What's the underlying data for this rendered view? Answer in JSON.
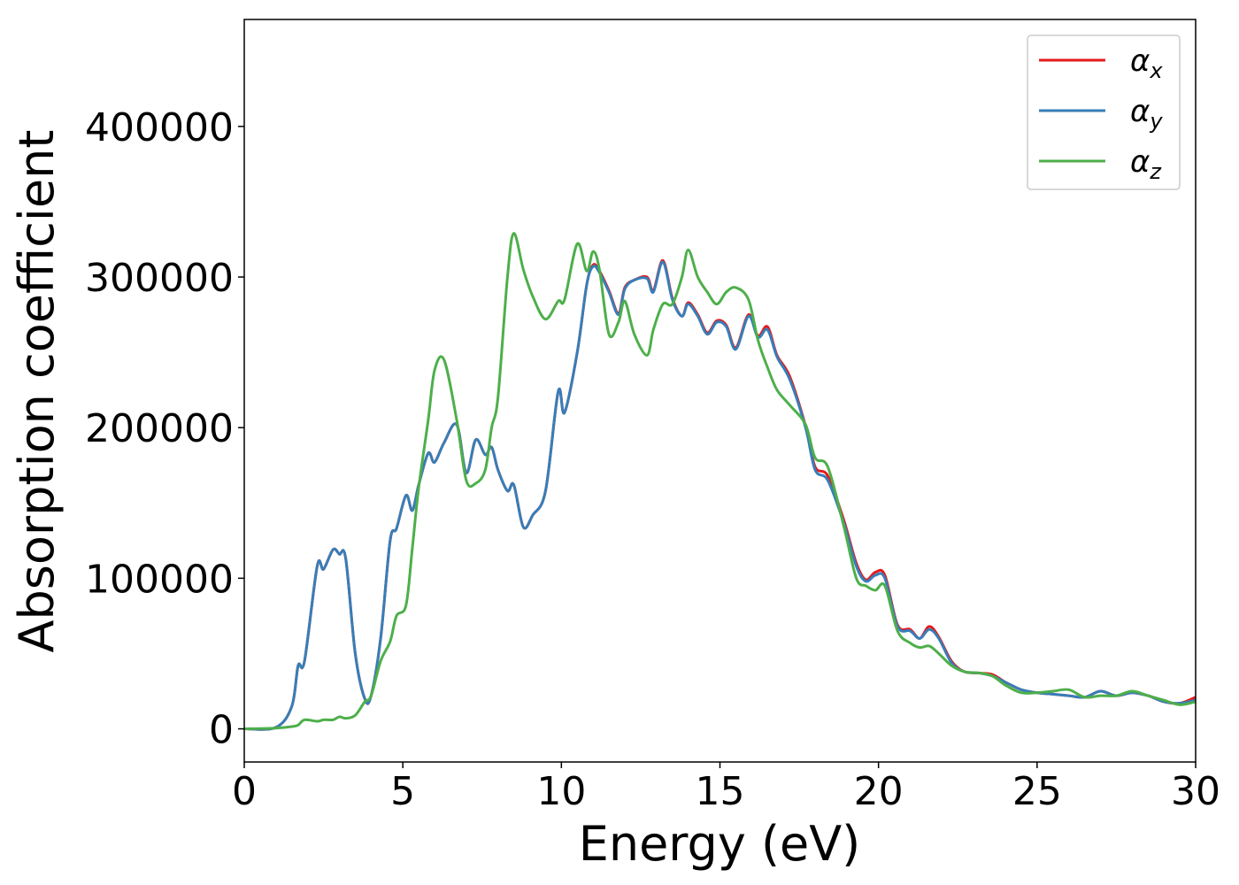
{
  "chart_data": {
    "type": "line",
    "xlabel": "Energy (eV)",
    "ylabel": "Absorption coefficient",
    "xlim": [
      0,
      30
    ],
    "ylim": [
      -22000,
      471000
    ],
    "xticks": [
      0,
      5,
      10,
      15,
      20,
      25,
      30
    ],
    "yticks": [
      0,
      100000,
      200000,
      300000,
      400000
    ],
    "grid": false,
    "legend": "upper right",
    "x": [
      0,
      1,
      1.5,
      1.7,
      1.9,
      2.3,
      2.5,
      2.8,
      3.0,
      3.2,
      3.5,
      3.8,
      4.0,
      4.3,
      4.6,
      4.8,
      5.1,
      5.3,
      5.5,
      5.8,
      6.0,
      6.3,
      6.7,
      7.0,
      7.3,
      7.6,
      7.8,
      8.0,
      8.3,
      8.5,
      8.8,
      9.1,
      9.5,
      9.9,
      10.1,
      10.5,
      10.8,
      11.0,
      11.2,
      11.5,
      11.8,
      12.0,
      12.3,
      12.7,
      12.9,
      13.2,
      13.5,
      13.8,
      14.0,
      14.3,
      14.6,
      14.9,
      15.2,
      15.5,
      15.9,
      16.2,
      16.5,
      16.8,
      17.2,
      17.7,
      18.0,
      18.4,
      18.9,
      19.3,
      19.6,
      19.9,
      20.2,
      20.6,
      21.0,
      21.3,
      21.6,
      21.9,
      22.3,
      22.7,
      23.2,
      23.6,
      24.0,
      24.5,
      25.0,
      25.5,
      26.0,
      26.5,
      27.0,
      27.5,
      28.0,
      28.5,
      29.0,
      29.5,
      30.0
    ],
    "series": [
      {
        "name": "αx",
        "color": "#e41a1c",
        "values": [
          0,
          1000,
          15000,
          42000,
          45000,
          108000,
          106000,
          119000,
          116000,
          113000,
          50000,
          20000,
          22000,
          60000,
          125000,
          133000,
          155000,
          145000,
          162000,
          183000,
          177000,
          190000,
          202000,
          170000,
          192000,
          182000,
          187000,
          172000,
          158000,
          162000,
          134000,
          142000,
          158000,
          224000,
          210000,
          250000,
          295000,
          308000,
          304000,
          291000,
          276000,
          293000,
          298000,
          300000,
          291000,
          311000,
          286000,
          274000,
          283000,
          275000,
          263000,
          271000,
          268000,
          253000,
          275000,
          261000,
          267000,
          248000,
          234000,
          201000,
          174000,
          168000,
          139000,
          110000,
          99000,
          104000,
          102000,
          69000,
          66000,
          60000,
          68000,
          61000,
          45000,
          38000,
          37000,
          36000,
          31000,
          26000,
          24000,
          23000,
          22000,
          21000,
          25000,
          22000,
          24000,
          22000,
          18000,
          17000,
          21000
        ]
      },
      {
        "name": "αy",
        "color": "#377eb8",
        "values": [
          0,
          1000,
          15000,
          42000,
          45000,
          108000,
          106000,
          119000,
          116000,
          113000,
          50000,
          20000,
          22000,
          60000,
          125000,
          133000,
          155000,
          145000,
          162000,
          183000,
          177000,
          190000,
          202000,
          170000,
          192000,
          182000,
          187000,
          172000,
          158000,
          162000,
          134000,
          142000,
          158000,
          224000,
          210000,
          250000,
          295000,
          307000,
          303000,
          290000,
          275000,
          292000,
          298000,
          299000,
          290000,
          310000,
          285000,
          274000,
          282000,
          274000,
          262000,
          270000,
          267000,
          252000,
          274000,
          260000,
          265000,
          247000,
          232000,
          200000,
          172000,
          165000,
          137000,
          108000,
          98000,
          102000,
          100000,
          68000,
          65000,
          60000,
          66000,
          60000,
          44000,
          38000,
          37000,
          35000,
          31000,
          26000,
          24000,
          23000,
          22000,
          21000,
          25000,
          22000,
          24000,
          22000,
          18000,
          17000,
          19000
        ]
      },
      {
        "name": "αz",
        "color": "#4daf4a",
        "values": [
          0,
          500,
          1500,
          2500,
          6000,
          5000,
          6000,
          6000,
          8000,
          7000,
          9000,
          18000,
          22000,
          45000,
          58000,
          75000,
          82000,
          120000,
          160000,
          205000,
          238000,
          245000,
          205000,
          165000,
          163000,
          172000,
          200000,
          220000,
          300000,
          329000,
          305000,
          287000,
          272000,
          284000,
          285000,
          322000,
          304000,
          317000,
          305000,
          262000,
          270000,
          284000,
          262000,
          248000,
          265000,
          282000,
          282000,
          300000,
          318000,
          300000,
          290000,
          282000,
          290000,
          293000,
          285000,
          258000,
          240000,
          225000,
          215000,
          202000,
          180000,
          174000,
          135000,
          100000,
          95000,
          92000,
          95000,
          65000,
          57000,
          54000,
          55000,
          50000,
          42000,
          38000,
          37000,
          35000,
          29000,
          24000,
          24000,
          25000,
          26000,
          21000,
          22000,
          22000,
          25000,
          22000,
          19000,
          16000,
          18000
        ]
      }
    ]
  }
}
